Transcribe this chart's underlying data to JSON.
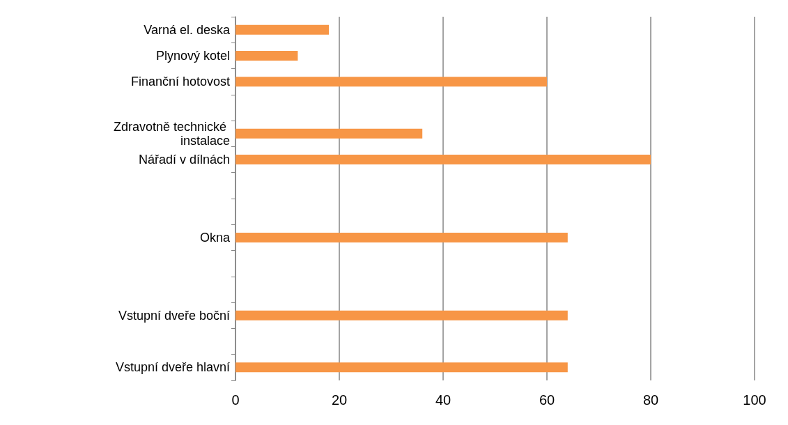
{
  "chart_data": {
    "type": "bar",
    "orientation": "horizontal",
    "categories": [
      "Varná el. deska",
      "Plynový kotel",
      "Finanční hotovost",
      null,
      "Zdravotně technické instalace",
      "Nářadí v dílnách",
      null,
      null,
      "Okna",
      null,
      null,
      "Vstupní dveře boční",
      null,
      "Vstupní dveře hlavní"
    ],
    "values": [
      18,
      12,
      60,
      null,
      36,
      80,
      null,
      null,
      64,
      null,
      null,
      64,
      null,
      64
    ],
    "color": "#f79646",
    "xlim": [
      0,
      100
    ],
    "xticks": [
      0,
      20,
      40,
      60,
      80,
      100
    ],
    "grid": "x"
  }
}
